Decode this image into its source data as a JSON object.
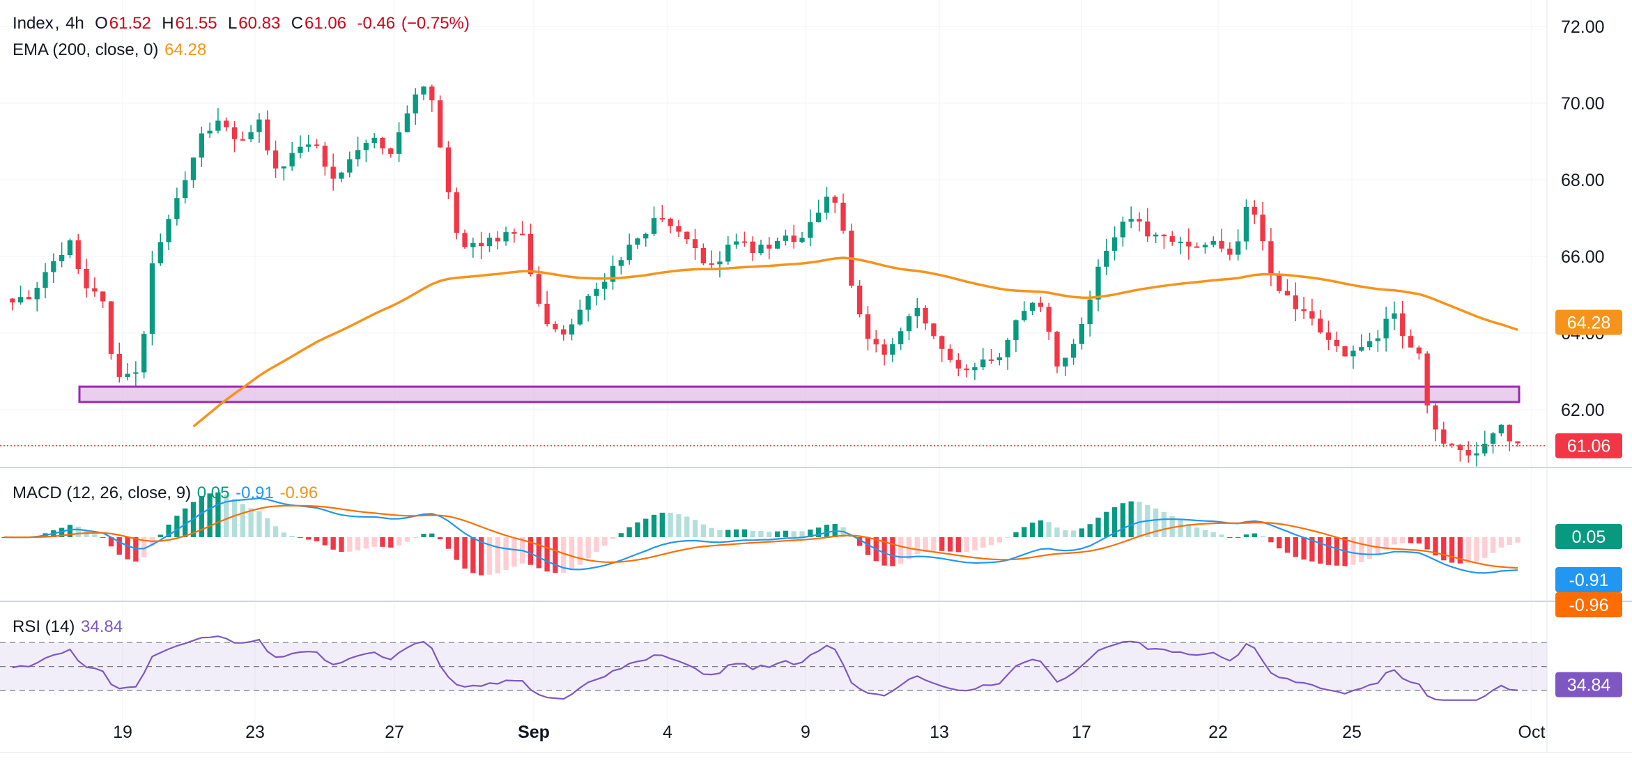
{
  "header": {
    "symbol": "Index",
    "timeframe": "4h",
    "open_label": "O",
    "open": "61.52",
    "high_label": "H",
    "high": "61.55",
    "low_label": "L",
    "low": "60.83",
    "close_label": "C",
    "close": "61.06",
    "change": "-0.46",
    "change_pct": "(−0.75%)"
  },
  "ema_legend": {
    "label": "EMA (200, close, 0)",
    "value": "64.28"
  },
  "macd_legend": {
    "label": "MACD (12, 26, close, 9)",
    "hist": "0.05",
    "macd": "-0.91",
    "signal": "-0.96"
  },
  "rsi_legend": {
    "label": "RSI (14)",
    "value": "34.84"
  },
  "price_badges": {
    "ema": "64.28",
    "last": "61.06"
  },
  "macd_badges": {
    "hist": "0.05",
    "macd": "-0.91",
    "signal": "-0.96"
  },
  "rsi_badge": "34.84",
  "colors": {
    "up": "#089981",
    "down": "#f23645",
    "ema": "#f7931a",
    "macd": "#2196f3",
    "signal": "#ff6d00",
    "rsi": "#7e57c2",
    "zone_fill": "#e1bee7",
    "zone_border": "#9c27b0"
  },
  "chart_data": {
    "type": "candlestick",
    "price_axis": {
      "ticks": [
        "72.00",
        "70.00",
        "68.00",
        "66.00",
        "64.00",
        "62.00"
      ],
      "range": [
        60.3,
        72.6
      ]
    },
    "x_axis": {
      "ticks": [
        "19",
        "23",
        "27",
        "Sep",
        "4",
        "9",
        "13",
        "17",
        "22",
        "25",
        "Oct"
      ]
    },
    "support_zone": [
      62.2,
      62.6
    ],
    "close_path_keypoints": [
      [
        0,
        65.0
      ],
      [
        10,
        64.8
      ],
      [
        20,
        65.5
      ],
      [
        32,
        66.3
      ],
      [
        38,
        65.2
      ],
      [
        48,
        64.8
      ],
      [
        52,
        63.5
      ],
      [
        58,
        62.7
      ],
      [
        66,
        63.2
      ],
      [
        72,
        65.8
      ],
      [
        80,
        67.0
      ],
      [
        90,
        68.3
      ],
      [
        96,
        69.3
      ],
      [
        104,
        69.5
      ],
      [
        114,
        69.0
      ],
      [
        124,
        69.5
      ],
      [
        132,
        68.2
      ],
      [
        140,
        68.6
      ],
      [
        150,
        69.0
      ],
      [
        160,
        68.0
      ],
      [
        170,
        68.6
      ],
      [
        180,
        69.0
      ],
      [
        188,
        68.6
      ],
      [
        196,
        69.7
      ],
      [
        202,
        70.5
      ],
      [
        210,
        69.8
      ],
      [
        214,
        68.0
      ],
      [
        222,
        66.3
      ],
      [
        234,
        66.4
      ],
      [
        242,
        66.5
      ],
      [
        252,
        66.7
      ],
      [
        258,
        65.0
      ],
      [
        264,
        64.2
      ],
      [
        272,
        63.9
      ],
      [
        280,
        64.6
      ],
      [
        290,
        65.3
      ],
      [
        300,
        66.0
      ],
      [
        310,
        66.6
      ],
      [
        318,
        67.0
      ],
      [
        330,
        66.5
      ],
      [
        338,
        66.0
      ],
      [
        346,
        65.6
      ],
      [
        354,
        66.5
      ],
      [
        362,
        66.2
      ],
      [
        370,
        66.2
      ],
      [
        378,
        66.6
      ],
      [
        386,
        66.4
      ],
      [
        394,
        67.0
      ],
      [
        400,
        67.6
      ],
      [
        406,
        67.2
      ],
      [
        412,
        65.3
      ],
      [
        418,
        63.9
      ],
      [
        428,
        63.4
      ],
      [
        436,
        64.0
      ],
      [
        444,
        64.7
      ],
      [
        450,
        64.2
      ],
      [
        458,
        63.5
      ],
      [
        466,
        63.1
      ],
      [
        476,
        63.3
      ],
      [
        486,
        63.4
      ],
      [
        492,
        64.3
      ],
      [
        500,
        64.9
      ],
      [
        506,
        64.6
      ],
      [
        512,
        63.2
      ],
      [
        520,
        63.6
      ],
      [
        528,
        65.0
      ],
      [
        534,
        66.0
      ],
      [
        540,
        66.6
      ],
      [
        548,
        67.0
      ],
      [
        556,
        66.6
      ],
      [
        566,
        66.4
      ],
      [
        576,
        66.2
      ],
      [
        584,
        66.4
      ],
      [
        592,
        66.2
      ],
      [
        598,
        65.8
      ],
      [
        604,
        67.4
      ],
      [
        610,
        67.0
      ],
      [
        616,
        65.4
      ],
      [
        622,
        65.0
      ],
      [
        628,
        64.6
      ],
      [
        636,
        64.3
      ],
      [
        644,
        63.8
      ],
      [
        652,
        63.5
      ],
      [
        660,
        63.7
      ],
      [
        668,
        63.9
      ],
      [
        674,
        64.6
      ],
      [
        680,
        64.0
      ],
      [
        688,
        63.4
      ],
      [
        694,
        61.6
      ],
      [
        700,
        61.1
      ],
      [
        708,
        60.9
      ],
      [
        716,
        60.8
      ],
      [
        722,
        61.2
      ],
      [
        728,
        61.5
      ],
      [
        734,
        61.06
      ]
    ],
    "ema": {
      "label": "EMA 200",
      "last": 64.28
    },
    "macd": {
      "hist_last": 0.05,
      "macd_last": -0.91,
      "signal_last": -0.96
    },
    "rsi": {
      "last": 34.84,
      "levels": [
        70,
        50,
        30
      ]
    }
  }
}
